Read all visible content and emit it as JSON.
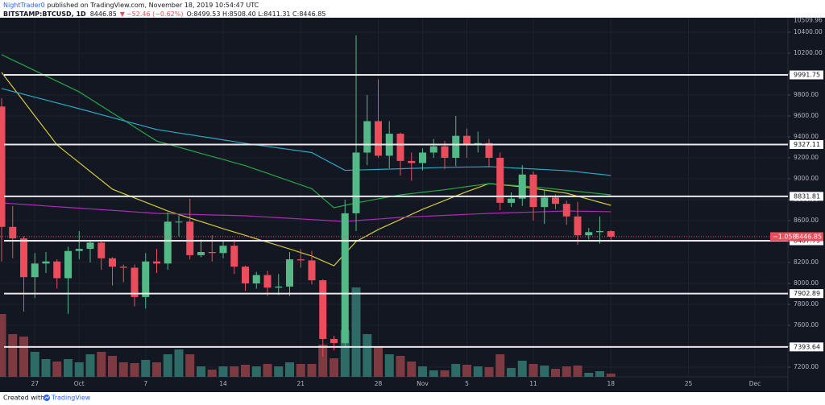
{
  "chart_data": {
    "type": "candlestick",
    "header": {
      "author": "NightTrader0",
      "published": " published on TradingView.com, November 18, 2019 10:54:47 UTC",
      "symbol": "BITSTAMP:BTCUSD, 1D",
      "last": "8446.85",
      "arrow": "▼",
      "change": "−52.46 (−0.62%)",
      "ohlc": "O:8499.53 H:8508.40 L:8411.31 C:8446.85"
    },
    "categories": [
      null,
      null,
      null,
      "27",
      null,
      null,
      null,
      "Oct",
      null,
      null,
      null,
      null,
      null,
      "7",
      null,
      null,
      null,
      null,
      null,
      null,
      "14",
      null,
      null,
      null,
      null,
      null,
      null,
      "21",
      null,
      null,
      null,
      null,
      null,
      null,
      "28",
      null,
      null,
      null,
      "Nov",
      null,
      null,
      null,
      "5",
      null,
      null,
      null,
      null,
      null,
      "11",
      null,
      null,
      null,
      null,
      null,
      null,
      "18",
      null,
      null,
      null,
      null,
      null,
      null,
      "25",
      null,
      null,
      null,
      null,
      null,
      "Dec",
      null,
      null
    ],
    "open": [
      9690,
      8540,
      8430,
      8060,
      8190,
      8210,
      8050,
      8310,
      8330,
      8390,
      8240,
      8160,
      8150,
      7870,
      8210,
      8190,
      8590,
      8590,
      8270,
      8300,
      8290,
      8360,
      8160,
      8000,
      8080,
      7960,
      7970,
      8230,
      8220,
      8030,
      7470,
      7430,
      8670,
      9250,
      9550,
      9220,
      9430,
      9170,
      9150,
      9250,
      9310,
      9200,
      9410,
      9320,
      9340,
      9200,
      8770,
      8810,
      9040,
      8730,
      8820,
      8760,
      8640,
      8460,
      8490,
      8499.53,
      null,
      null,
      null,
      null,
      null,
      null,
      null,
      null,
      null,
      null,
      null,
      null,
      null,
      null,
      null
    ],
    "high": [
      9770,
      8740,
      8450,
      8290,
      8300,
      8230,
      8350,
      8500,
      8400,
      8410,
      8250,
      8180,
      8180,
      8290,
      8330,
      8680,
      8650,
      8810,
      8420,
      8460,
      8400,
      8420,
      8170,
      8110,
      8120,
      8090,
      8300,
      8330,
      8310,
      8040,
      7500,
      8800,
      10370,
      9800,
      9950,
      9550,
      9440,
      9250,
      9290,
      9380,
      9360,
      9600,
      9480,
      9450,
      9380,
      9250,
      8870,
      9130,
      9070,
      8890,
      8850,
      8790,
      8780,
      8530,
      8640,
      8508.4,
      null,
      null,
      null,
      null,
      null,
      null,
      null,
      null,
      null,
      null,
      null,
      null,
      null,
      null,
      null
    ],
    "low": [
      8210,
      8240,
      7730,
      7860,
      8100,
      7950,
      7710,
      8230,
      8200,
      8130,
      7980,
      8010,
      7780,
      7760,
      8100,
      8130,
      8450,
      8230,
      8250,
      8210,
      8240,
      8090,
      7930,
      7950,
      7880,
      7890,
      7880,
      8150,
      7990,
      7300,
      7360,
      7400,
      8500,
      9130,
      9200,
      9100,
      9030,
      8980,
      9080,
      9200,
      9090,
      9120,
      9200,
      9250,
      9110,
      8700,
      8730,
      8740,
      8600,
      8570,
      8710,
      8560,
      8370,
      8420,
      8380,
      8411.31,
      null,
      null,
      null,
      null,
      null,
      null,
      null,
      null,
      null,
      null,
      null,
      null,
      null,
      null,
      null
    ],
    "close": [
      8540,
      8430,
      8060,
      8190,
      8210,
      8050,
      8310,
      8330,
      8390,
      8240,
      8160,
      8150,
      7870,
      8210,
      8190,
      8590,
      8590,
      8270,
      8300,
      8290,
      8360,
      8160,
      8000,
      8080,
      7960,
      7970,
      8230,
      8220,
      8030,
      7470,
      7430,
      8670,
      9250,
      9550,
      9220,
      9430,
      9170,
      9150,
      9250,
      9310,
      9200,
      9410,
      9320,
      9340,
      9200,
      8770,
      8810,
      9040,
      8730,
      8820,
      8760,
      8640,
      8460,
      8490,
      8500,
      8446.85,
      null,
      null,
      null,
      null,
      null,
      null,
      null,
      null,
      null,
      null,
      null,
      null,
      null,
      null,
      null
    ],
    "volume": [
      19500,
      13250,
      12500,
      7750,
      5500,
      4750,
      5500,
      4500,
      7000,
      7750,
      6500,
      4500,
      4250,
      5250,
      4500,
      7000,
      8500,
      7000,
      3250,
      2250,
      3250,
      3250,
      3750,
      3250,
      4000,
      3250,
      4500,
      4000,
      4000,
      10000,
      5750,
      14500,
      27750,
      13250,
      9500,
      7000,
      6500,
      4750,
      3250,
      2000,
      2000,
      4000,
      3750,
      3250,
      3000,
      7000,
      2750,
      5000,
      4000,
      3500,
      2500,
      3250,
      3500,
      1250,
      1750,
      1000,
      null,
      null,
      null,
      null,
      null,
      null,
      null,
      null,
      null,
      null,
      null,
      null,
      null,
      null,
      null
    ],
    "volume_lim": [
      0,
      40000
    ],
    "colors": {
      "up": "#53b987",
      "down": "#eb4d5c",
      "volume_up": "#2e6b67",
      "volume_down": "#7d3a41"
    },
    "ma_series": [
      {
        "color": "#d4c93a",
        "values": [
          10015,
          9877,
          9739,
          9600,
          9462,
          9323,
          9238,
          9154,
          9069,
          8985,
          8900,
          8858,
          8817,
          8775,
          8734,
          8692,
          8658,
          8624,
          8591,
          8557,
          8523,
          8491,
          8459,
          8426,
          8394,
          8362,
          8329,
          8295,
          8262,
          8215,
          8169,
          8285,
          8400,
          8457,
          8515,
          8563,
          8611,
          8660,
          8708,
          8750,
          8793,
          8835,
          8877,
          8915,
          8954,
          8944,
          8933,
          8923,
          8908,
          8892,
          8877,
          8862,
          8833,
          8804,
          8775,
          8746,
          null,
          null,
          null,
          null,
          null,
          null,
          null,
          null,
          null,
          null,
          null,
          null,
          null,
          null,
          null
        ]
      },
      {
        "color": "#27a644",
        "values": [
          10185,
          10134,
          10084,
          10033,
          9982,
          9932,
          9881,
          9830,
          9763,
          9696,
          9629,
          9562,
          9494,
          9427,
          9360,
          9331,
          9301,
          9272,
          9242,
          9213,
          9184,
          9154,
          9125,
          9088,
          9052,
          9015,
          8978,
          8942,
          8905,
          8814,
          8723,
          8746,
          8769,
          8788,
          8808,
          8827,
          8846,
          8858,
          8871,
          8883,
          8895,
          8910,
          8925,
          8939,
          8954,
          8946,
          8938,
          8931,
          8923,
          8912,
          8901,
          8890,
          8879,
          8868,
          8857,
          8846,
          null,
          null,
          null,
          null,
          null,
          null,
          null,
          null,
          null,
          null,
          null,
          null,
          null,
          null,
          null
        ]
      },
      {
        "color": "#2aa8c4",
        "values": [
          9862,
          9834,
          9807,
          9779,
          9752,
          9724,
          9697,
          9669,
          9641,
          9612,
          9584,
          9555,
          9527,
          9498,
          9470,
          9454,
          9437,
          9421,
          9404,
          9388,
          9371,
          9355,
          9338,
          9323,
          9309,
          9294,
          9279,
          9265,
          9250,
          9193,
          9137,
          9080,
          9083,
          9086,
          9089,
          9092,
          9095,
          9099,
          9102,
          9105,
          9108,
          9110,
          9112,
          9113,
          9115,
          9110,
          9104,
          9099,
          9093,
          9088,
          9082,
          9077,
          9066,
          9054,
          9043,
          9031,
          null,
          null,
          null,
          null,
          null,
          null,
          null,
          null,
          null,
          null,
          null,
          null,
          null,
          null,
          null
        ]
      },
      {
        "color": "#b02ab8",
        "values": [
          8769,
          8762,
          8755,
          8748,
          8740,
          8733,
          8726,
          8719,
          8712,
          8705,
          8698,
          8691,
          8683,
          8676,
          8669,
          8666,
          8663,
          8660,
          8657,
          8654,
          8652,
          8649,
          8646,
          8640,
          8634,
          8628,
          8622,
          8616,
          8610,
          8604,
          8598,
          8592,
          8600,
          8608,
          8615,
          8623,
          8631,
          8636,
          8641,
          8645,
          8650,
          8655,
          8660,
          8664,
          8669,
          8672,
          8676,
          8679,
          8682,
          8685,
          8689,
          8692,
          8690,
          8689,
          8687,
          8685,
          null,
          null,
          null,
          null,
          null,
          null,
          null,
          null,
          null,
          null,
          null,
          null,
          null,
          null,
          null
        ]
      }
    ],
    "levels": [
      9991.75,
      9327.11,
      8831.81,
      8407.79,
      7902.89,
      7393.64
    ],
    "price_tag": {
      "value": 8446.85,
      "countdown": "−1.058"
    },
    "ylim": [
      7108,
      10538
    ],
    "ytop": 10509.96,
    "yticks": [
      {
        "value": 7200,
        "label": "7200.00"
      },
      {
        "value": 7400,
        "label": "7400.00"
      },
      {
        "value": 7600,
        "label": "7600.00"
      },
      {
        "value": 7800,
        "label": "7800.00"
      },
      {
        "value": 8000,
        "label": "8000.00"
      },
      {
        "value": 8200,
        "label": "8200.00"
      },
      {
        "value": 8400,
        "label": "8400.00"
      },
      {
        "value": 8600,
        "label": "8600.00"
      },
      {
        "value": 8800,
        "label": "8800.00"
      },
      {
        "value": 9000,
        "label": "9000.00"
      },
      {
        "value": 9200,
        "label": "9200.00"
      },
      {
        "value": 9400,
        "label": "9400.00"
      },
      {
        "value": 9600,
        "label": "9600.00"
      },
      {
        "value": 9800,
        "label": "9800.00"
      },
      {
        "value": 10000,
        "label": "10000.00"
      },
      {
        "value": 10200,
        "label": "10200.00"
      },
      {
        "value": 10400,
        "label": "10400.00"
      }
    ],
    "grid": true,
    "footer": "Created with",
    "logo": "TradingView"
  }
}
